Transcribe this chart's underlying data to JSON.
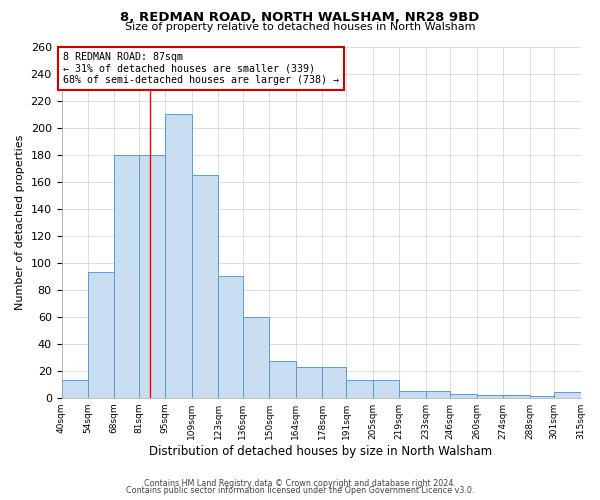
{
  "title": "8, REDMAN ROAD, NORTH WALSHAM, NR28 9BD",
  "subtitle": "Size of property relative to detached houses in North Walsham",
  "xlabel": "Distribution of detached houses by size in North Walsham",
  "ylabel": "Number of detached properties",
  "bar_color": "#c9ddf0",
  "bar_edge_color": "#5b9bd5",
  "bin_labels": [
    "40sqm",
    "54sqm",
    "68sqm",
    "81sqm",
    "95sqm",
    "109sqm",
    "123sqm",
    "136sqm",
    "150sqm",
    "164sqm",
    "178sqm",
    "191sqm",
    "205sqm",
    "219sqm",
    "233sqm",
    "246sqm",
    "260sqm",
    "274sqm",
    "288sqm",
    "301sqm",
    "315sqm"
  ],
  "bar_heights": [
    13,
    93,
    180,
    180,
    210,
    165,
    90,
    60,
    27,
    23,
    23,
    13,
    13,
    5,
    5,
    3,
    2,
    2,
    1,
    4
  ],
  "bin_edges": [
    40,
    54,
    68,
    81,
    95,
    109,
    123,
    136,
    150,
    164,
    178,
    191,
    205,
    219,
    233,
    246,
    260,
    274,
    288,
    301,
    315
  ],
  "ylim": [
    0,
    260
  ],
  "yticks": [
    0,
    20,
    40,
    60,
    80,
    100,
    120,
    140,
    160,
    180,
    200,
    220,
    240,
    260
  ],
  "redline_x": 87,
  "annotation_text": "8 REDMAN ROAD: 87sqm\n← 31% of detached houses are smaller (339)\n68% of semi-detached houses are larger (738) →",
  "annotation_box_color": "#ffffff",
  "annotation_box_edge_color": "#cc0000",
  "footer1": "Contains HM Land Registry data © Crown copyright and database right 2024.",
  "footer2": "Contains public sector information licensed under the Open Government Licence v3.0.",
  "background_color": "#ffffff",
  "grid_color": "#d0d0d0"
}
